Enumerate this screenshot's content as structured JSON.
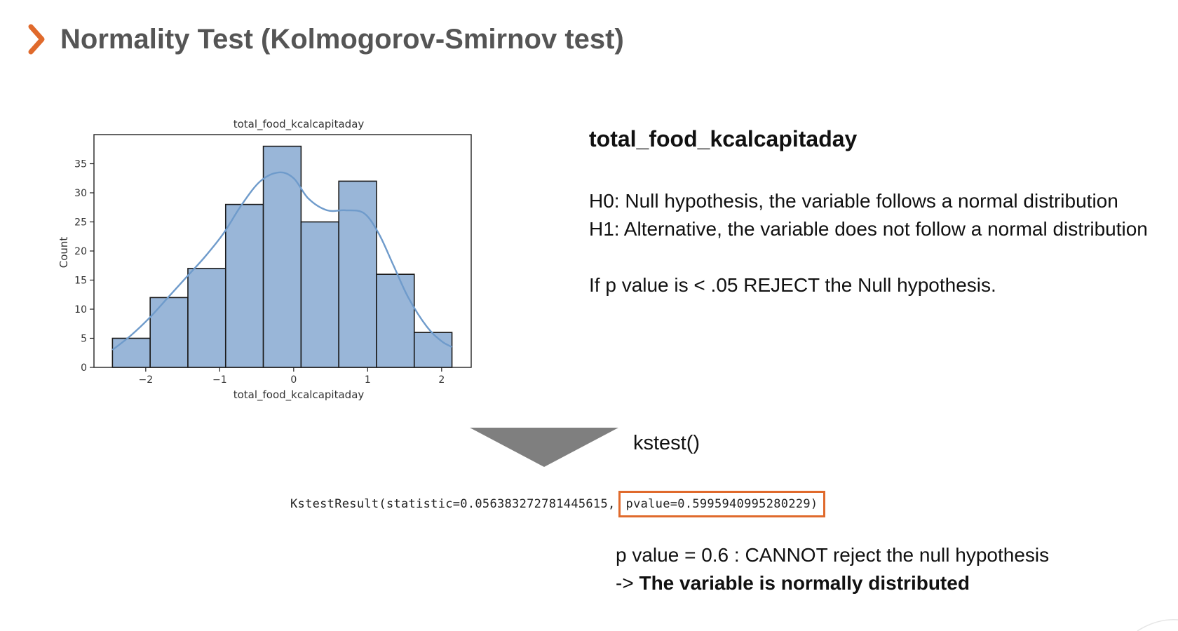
{
  "header": {
    "title": "Normality Test (Kolmogorov-Smirnov test)",
    "accent_color": "#e06a2c",
    "title_color": "#555555"
  },
  "chart_data": {
    "type": "bar",
    "title": "total_food_kcalcapitaday",
    "xlabel": "total_food_kcalcapitaday",
    "ylabel": "Count",
    "bin_edges": [
      -2.45,
      -1.94,
      -1.43,
      -0.92,
      -0.41,
      0.1,
      0.61,
      1.12,
      1.63,
      2.14
    ],
    "values": [
      5,
      12,
      17,
      28,
      38,
      25,
      32,
      16,
      6
    ],
    "xlim": [
      -2.7,
      2.4
    ],
    "ylim": [
      0,
      40
    ],
    "xticks": [
      -2,
      -1,
      0,
      1,
      2
    ],
    "yticks": [
      0,
      5,
      10,
      15,
      20,
      25,
      30,
      35
    ],
    "kde": {
      "x": [
        -2.45,
        -2.2,
        -1.95,
        -1.7,
        -1.45,
        -1.2,
        -0.95,
        -0.7,
        -0.45,
        -0.2,
        0.0,
        0.2,
        0.45,
        0.7,
        0.95,
        1.15,
        1.35,
        1.55,
        1.8,
        2.0,
        2.14
      ],
      "y": [
        3,
        5.5,
        8.5,
        12,
        15.5,
        19,
        23,
        28,
        32,
        33.5,
        32.5,
        29,
        27,
        27,
        26.5,
        23,
        17.5,
        12,
        7,
        4.5,
        3.5
      ]
    },
    "bar_color": "#99b6d8",
    "line_color": "#6f9bcb",
    "grid": false
  },
  "panel": {
    "variable": "total_food_kcalcapitaday",
    "h0": "H0: Null hypothesis, the variable follows a normal distribution",
    "h1": "H1: Alternative, the variable does not follow a normal distribution",
    "rule": "If p value is < .05 REJECT the Null hypothesis."
  },
  "function_label": "kstest()",
  "result": {
    "prefix": "KstestResult(statistic=0.056383272781445615,",
    "pvalue": "pvalue=0.5995940995280229)"
  },
  "conclusion": {
    "line1": "p value = 0.6 : CANNOT reject the null hypothesis",
    "line2_prefix": "-> ",
    "line2_bold": "The variable is normally distributed"
  }
}
